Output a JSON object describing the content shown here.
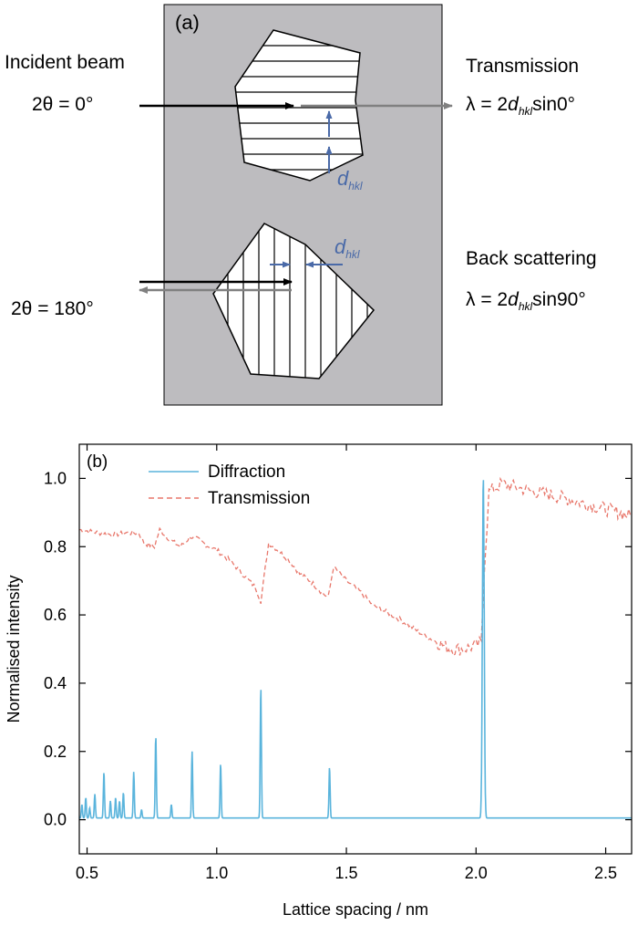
{
  "panel_a": {
    "tag": "(a)",
    "incident_label": "Incident beam",
    "transmission_label": "Transmission",
    "back_scattering_label": "Back scattering",
    "two_theta_top": "2θ = 0°",
    "two_theta_bottom": "2θ = 180°",
    "eq_top_prefix": "λ = 2",
    "eq_top_suffix": "sin0°",
    "eq_bottom_prefix": "λ = 2",
    "eq_bottom_suffix": "sin90°",
    "d_symbol": "d",
    "d_subscript": "hkl",
    "colors": {
      "background": "#bdbcbf",
      "blue": "#4a6aa8",
      "grey_arrow": "#808080"
    }
  },
  "chart_data": {
    "type": "line",
    "panel_tag": "(b)",
    "xlabel": "Lattice spacing / nm",
    "ylabel": "Normalised intensity",
    "xlim": [
      0.47,
      2.6
    ],
    "ylim": [
      -0.1,
      1.1
    ],
    "xticks": [
      0.5,
      1.0,
      1.5,
      2.0,
      2.5
    ],
    "xtick_labels": [
      "0.5",
      "1.0",
      "1.5",
      "2.0",
      "2.5"
    ],
    "yticks": [
      0.0,
      0.2,
      0.4,
      0.6,
      0.8,
      1.0
    ],
    "ytick_labels": [
      "0.0",
      "0.2",
      "0.4",
      "0.6",
      "0.8",
      "1.0"
    ],
    "grid": false,
    "legend_position": "top-left",
    "series": [
      {
        "name": "Diffraction",
        "style": "solid",
        "color": "#5ab4dc",
        "baseline": 0.005,
        "peaks": [
          {
            "d": 0.48,
            "h": 0.04
          },
          {
            "d": 0.495,
            "h": 0.06
          },
          {
            "d": 0.51,
            "h": 0.03
          },
          {
            "d": 0.53,
            "h": 0.07
          },
          {
            "d": 0.565,
            "h": 0.135
          },
          {
            "d": 0.59,
            "h": 0.05
          },
          {
            "d": 0.61,
            "h": 0.06
          },
          {
            "d": 0.625,
            "h": 0.05
          },
          {
            "d": 0.64,
            "h": 0.075
          },
          {
            "d": 0.68,
            "h": 0.135
          },
          {
            "d": 0.71,
            "h": 0.025
          },
          {
            "d": 0.765,
            "h": 0.24
          },
          {
            "d": 0.825,
            "h": 0.04
          },
          {
            "d": 0.905,
            "h": 0.195
          },
          {
            "d": 1.015,
            "h": 0.16
          },
          {
            "d": 1.17,
            "h": 0.385
          },
          {
            "d": 1.435,
            "h": 0.15
          },
          {
            "d": 2.028,
            "h": 1.0
          }
        ]
      },
      {
        "name": "Transmission",
        "style": "dashed",
        "color": "#e8776b",
        "points": [
          [
            0.47,
            0.85
          ],
          [
            0.55,
            0.84
          ],
          [
            0.6,
            0.835
          ],
          [
            0.65,
            0.84
          ],
          [
            0.7,
            0.84
          ],
          [
            0.72,
            0.81
          ],
          [
            0.76,
            0.8
          ],
          [
            0.78,
            0.85
          ],
          [
            0.82,
            0.82
          ],
          [
            0.86,
            0.8
          ],
          [
            0.9,
            0.83
          ],
          [
            0.93,
            0.82
          ],
          [
            0.97,
            0.8
          ],
          [
            1.0,
            0.79
          ],
          [
            1.05,
            0.76
          ],
          [
            1.1,
            0.72
          ],
          [
            1.15,
            0.68
          ],
          [
            1.17,
            0.64
          ],
          [
            1.2,
            0.81
          ],
          [
            1.22,
            0.8
          ],
          [
            1.28,
            0.76
          ],
          [
            1.32,
            0.72
          ],
          [
            1.36,
            0.7
          ],
          [
            1.4,
            0.67
          ],
          [
            1.43,
            0.65
          ],
          [
            1.45,
            0.74
          ],
          [
            1.5,
            0.7
          ],
          [
            1.55,
            0.67
          ],
          [
            1.6,
            0.63
          ],
          [
            1.7,
            0.59
          ],
          [
            1.8,
            0.54
          ],
          [
            1.9,
            0.5
          ],
          [
            1.95,
            0.5
          ],
          [
            2.0,
            0.51
          ],
          [
            2.02,
            0.52
          ],
          [
            2.03,
            0.7
          ],
          [
            2.05,
            0.96
          ],
          [
            2.1,
            0.985
          ],
          [
            2.15,
            0.975
          ],
          [
            2.2,
            0.965
          ],
          [
            2.3,
            0.95
          ],
          [
            2.4,
            0.93
          ],
          [
            2.5,
            0.91
          ],
          [
            2.6,
            0.89
          ]
        ]
      }
    ]
  }
}
